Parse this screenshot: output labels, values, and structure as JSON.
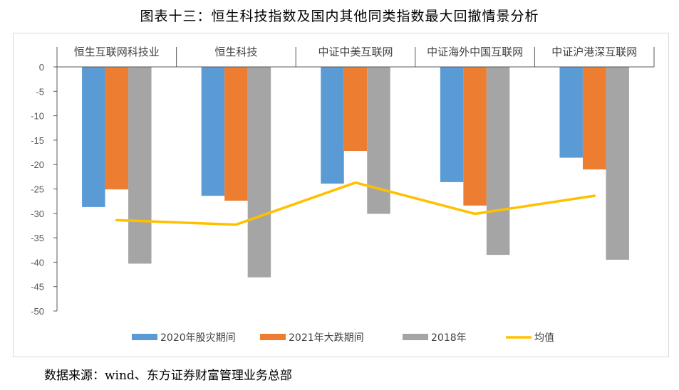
{
  "title": "图表十三：恒生科技指数及国内其他同类指数最大回撤情景分析",
  "source": "数据来源：wind、东方证券财富管理业务总部",
  "chart_data": {
    "type": "bar",
    "categories": [
      "恒生互联网科技业",
      "恒生科技",
      "中证中美互联网",
      "中证海外中国互联网",
      "中证沪港深互联网"
    ],
    "series": [
      {
        "name": "2020年股灾期间",
        "type": "bar",
        "color": "#5b9bd5",
        "values": [
          -28.7,
          -26.4,
          -23.9,
          -23.6,
          -18.6
        ]
      },
      {
        "name": "2021年大跌期间",
        "type": "bar",
        "color": "#ed7d31",
        "values": [
          -25.1,
          -27.4,
          -17.2,
          -28.4,
          -21.0
        ]
      },
      {
        "name": "2018年",
        "type": "bar",
        "color": "#a5a5a5",
        "values": [
          -40.3,
          -43.1,
          -30.1,
          -38.5,
          -39.5
        ]
      },
      {
        "name": "均值",
        "type": "line",
        "color": "#ffc000",
        "values": [
          -31.4,
          -32.3,
          -23.7,
          -30.1,
          -26.4
        ]
      }
    ],
    "ylim": [
      -50,
      0
    ],
    "yticks": [
      "0",
      "-5",
      "-10",
      "-15",
      "-20",
      "-25",
      "-30",
      "-35",
      "-40",
      "-45",
      "-50"
    ],
    "xlabel": "",
    "ylabel": "",
    "legend": "bottom",
    "category_axis_position": "top"
  }
}
